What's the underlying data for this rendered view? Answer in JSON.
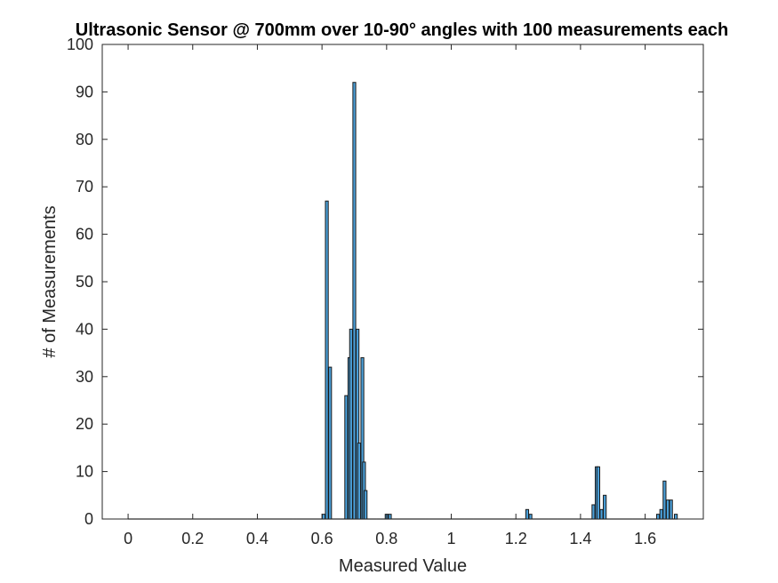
{
  "chart_data": {
    "type": "bar",
    "title": "Ultrasonic Sensor @ 700mm over 10-90° angles with 100 measurements each",
    "xlabel": "Measured Value",
    "ylabel": "# of Measurements",
    "xlim": [
      -0.08,
      1.78
    ],
    "ylim": [
      0,
      100
    ],
    "bin_width": 0.01,
    "x_ticks": [
      "0",
      "0.2",
      "0.4",
      "0.6",
      "0.8",
      "1",
      "1.2",
      "1.4",
      "1.6"
    ],
    "x_tick_values": [
      0,
      0.2,
      0.4,
      0.6,
      0.8,
      1,
      1.2,
      1.4,
      1.6
    ],
    "y_ticks": [
      "0",
      "10",
      "20",
      "30",
      "40",
      "50",
      "60",
      "70",
      "80",
      "90",
      "100"
    ],
    "y_tick_values": [
      0,
      10,
      20,
      30,
      40,
      50,
      60,
      70,
      80,
      90,
      100
    ],
    "grid": false,
    "bar_color": "#4a9fd8",
    "edge_color": "#1a1a1a",
    "bins": [
      {
        "x": 0.605,
        "value": 1
      },
      {
        "x": 0.615,
        "value": 67
      },
      {
        "x": 0.625,
        "value": 32
      },
      {
        "x": 0.675,
        "value": 26
      },
      {
        "x": 0.685,
        "value": 34
      },
      {
        "x": 0.69,
        "value": 40
      },
      {
        "x": 0.7,
        "value": 92
      },
      {
        "x": 0.71,
        "value": 40
      },
      {
        "x": 0.715,
        "value": 16
      },
      {
        "x": 0.725,
        "value": 34
      },
      {
        "x": 0.73,
        "value": 12
      },
      {
        "x": 0.735,
        "value": 6
      },
      {
        "x": 0.8,
        "value": 1
      },
      {
        "x": 0.81,
        "value": 1
      },
      {
        "x": 1.235,
        "value": 2
      },
      {
        "x": 1.245,
        "value": 1
      },
      {
        "x": 1.44,
        "value": 3
      },
      {
        "x": 1.45,
        "value": 11
      },
      {
        "x": 1.455,
        "value": 11
      },
      {
        "x": 1.465,
        "value": 2
      },
      {
        "x": 1.475,
        "value": 5
      },
      {
        "x": 1.64,
        "value": 1
      },
      {
        "x": 1.65,
        "value": 2
      },
      {
        "x": 1.66,
        "value": 8
      },
      {
        "x": 1.67,
        "value": 4
      },
      {
        "x": 1.68,
        "value": 4
      },
      {
        "x": 1.695,
        "value": 1
      }
    ],
    "zero_bins_range": [
      0,
      1.7
    ]
  }
}
